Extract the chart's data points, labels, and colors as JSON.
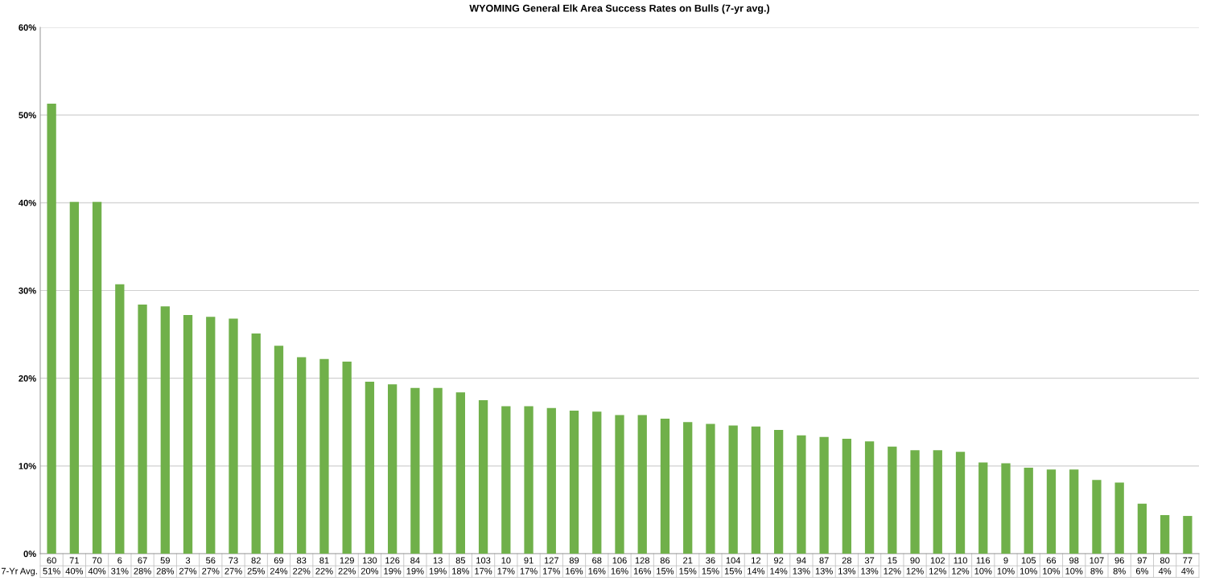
{
  "chart_data": {
    "type": "bar",
    "title": "WYOMING General Elk Area Success Rates on Bulls (7-yr avg.)",
    "categories": [
      "60",
      "71",
      "70",
      "6",
      "67",
      "59",
      "3",
      "56",
      "73",
      "82",
      "69",
      "83",
      "81",
      "129",
      "130",
      "126",
      "84",
      "13",
      "85",
      "103",
      "10",
      "91",
      "127",
      "89",
      "68",
      "106",
      "128",
      "86",
      "21",
      "36",
      "104",
      "12",
      "92",
      "94",
      "87",
      "28",
      "37",
      "15",
      "90",
      "102",
      "110",
      "116",
      "9",
      "105",
      "66",
      "98",
      "107",
      "96",
      "97",
      "80",
      "77"
    ],
    "values": [
      51.3,
      40.1,
      40.1,
      30.7,
      28.4,
      28.2,
      27.2,
      27.0,
      26.8,
      25.1,
      23.7,
      22.4,
      22.2,
      21.9,
      19.6,
      19.3,
      18.9,
      18.9,
      18.4,
      17.5,
      16.8,
      16.8,
      16.6,
      16.3,
      16.2,
      15.8,
      15.8,
      15.4,
      15.0,
      14.8,
      14.6,
      14.5,
      14.1,
      13.5,
      13.3,
      13.1,
      12.8,
      12.2,
      11.8,
      11.8,
      11.6,
      10.4,
      10.3,
      9.8,
      9.6,
      9.6,
      8.4,
      8.1,
      5.7,
      4.4,
      4.3
    ],
    "value_labels": [
      "51%",
      "40%",
      "40%",
      "31%",
      "28%",
      "28%",
      "27%",
      "27%",
      "27%",
      "25%",
      "24%",
      "22%",
      "22%",
      "22%",
      "20%",
      "19%",
      "19%",
      "19%",
      "18%",
      "17%",
      "17%",
      "17%",
      "17%",
      "16%",
      "16%",
      "16%",
      "16%",
      "15%",
      "15%",
      "15%",
      "15%",
      "14%",
      "14%",
      "13%",
      "13%",
      "13%",
      "13%",
      "12%",
      "12%",
      "12%",
      "12%",
      "10%",
      "10%",
      "10%",
      "10%",
      "10%",
      "8%",
      "8%",
      "6%",
      "4%",
      "4%"
    ],
    "color": "#70b04a",
    "ylim": [
      0,
      60
    ],
    "yticks": [
      {
        "value": 0,
        "label": "0%"
      },
      {
        "value": 10,
        "label": "10%"
      },
      {
        "value": 20,
        "label": "20%"
      },
      {
        "value": 30,
        "label": "30%"
      },
      {
        "value": 40,
        "label": "40%"
      },
      {
        "value": 50,
        "label": "50%"
      },
      {
        "value": 60,
        "label": "60%"
      }
    ],
    "grid": "y",
    "annotations": [
      "7-Yr Avg."
    ]
  }
}
